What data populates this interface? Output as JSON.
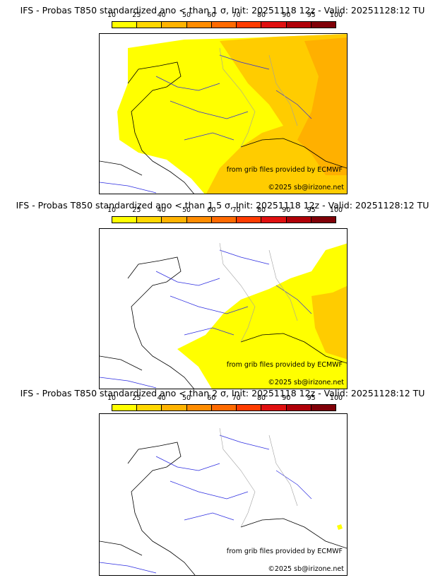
{
  "colors": {
    "scale": [
      "#ffff00",
      "#ffd700",
      "#ffb300",
      "#ff8c00",
      "#ff6a00",
      "#ff3c00",
      "#e01010",
      "#b00008",
      "#800008",
      "#4a0000"
    ],
    "yellow": "#ffff00",
    "orange_light": "#ffcc00",
    "orange": "#ffaa00",
    "coast": "#000000",
    "rivers": "#2a2ae0",
    "borders": "#a0a0a0"
  },
  "colorbar_ticks": [
    "10",
    "25",
    "40",
    "50",
    "60",
    "70",
    "80",
    "90",
    "95",
    "100"
  ],
  "panels": [
    {
      "title": "IFS - Probas T850  standardized ano < than 1 σ, Init: 20251118 12z - Valid: 20251128:12 TU",
      "credit": "from grib files provided by ECMWF",
      "copyright": "©2025 sb@irizone.net",
      "coverage": "high"
    },
    {
      "title": "IFS - Probas T850  standardized ano < than 1.5 σ, Init: 20251118 12z - Valid: 20251128:12 TU",
      "credit": "from grib files provided by ECMWF",
      "copyright": "©2025 sb@irizone.net",
      "coverage": "medium"
    },
    {
      "title": "IFS - Probas T850  standardized ano < than 2 σ, Init: 20251118 12z - Valid: 20251128:12 TU",
      "credit": "from grib files provided by ECMWF",
      "copyright": "©2025 sb@irizone.net",
      "coverage": "low"
    }
  ]
}
